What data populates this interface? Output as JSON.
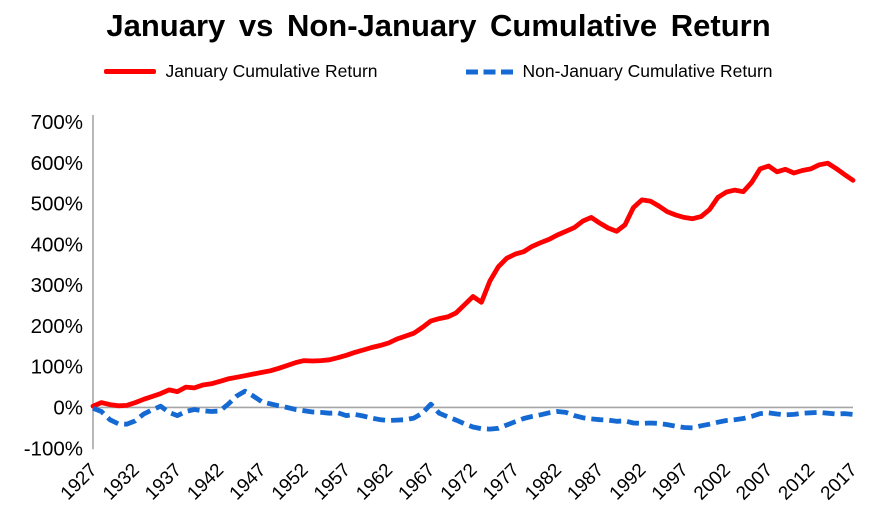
{
  "title": "January vs Non-January Cumulative Return",
  "legend": {
    "position": "top",
    "items": [
      {
        "label": "January Cumulative Return",
        "color": "#ff0000",
        "style": "solid"
      },
      {
        "label": "Non-January Cumulative Return",
        "color": "#1569d2",
        "style": "dashed"
      }
    ]
  },
  "chart_data": {
    "type": "line",
    "title": "January vs Non-January Cumulative Return",
    "xlabel": "",
    "ylabel": "",
    "grid": "zero-line-only",
    "axis_color": "#a6a6a6",
    "y_axis": {
      "min": -100,
      "max": 700,
      "step": 100,
      "tick_values": [
        700,
        600,
        500,
        400,
        300,
        200,
        100,
        0,
        -100
      ],
      "tick_labels": [
        "700%",
        "600%",
        "500%",
        "400%",
        "300%",
        "200%",
        "100%",
        "0%",
        "-100%"
      ]
    },
    "x_axis": {
      "min": 1927,
      "max": 2017,
      "tick_values": [
        1927,
        1932,
        1937,
        1942,
        1947,
        1952,
        1957,
        1962,
        1967,
        1972,
        1977,
        1982,
        1987,
        1992,
        1997,
        2002,
        2007,
        2012,
        2017
      ],
      "tick_labels": [
        "1927",
        "1932",
        "1937",
        "1942",
        "1947",
        "1952",
        "1957",
        "1962",
        "1967",
        "1972",
        "1977",
        "1982",
        "1987",
        "1992",
        "1997",
        "2002",
        "2007",
        "2012",
        "2017"
      ]
    },
    "years": [
      1927,
      1928,
      1929,
      1930,
      1931,
      1932,
      1933,
      1934,
      1935,
      1936,
      1937,
      1938,
      1939,
      1940,
      1941,
      1942,
      1943,
      1944,
      1945,
      1946,
      1947,
      1948,
      1949,
      1950,
      1951,
      1952,
      1953,
      1954,
      1955,
      1956,
      1957,
      1958,
      1959,
      1960,
      1961,
      1962,
      1963,
      1964,
      1965,
      1966,
      1967,
      1968,
      1969,
      1970,
      1971,
      1972,
      1973,
      1974,
      1975,
      1976,
      1977,
      1978,
      1979,
      1980,
      1981,
      1982,
      1983,
      1984,
      1985,
      1986,
      1987,
      1988,
      1989,
      1990,
      1991,
      1992,
      1993,
      1994,
      1995,
      1996,
      1997,
      1998,
      1999,
      2000,
      2001,
      2002,
      2003,
      2004,
      2005,
      2006,
      2007,
      2008,
      2009,
      2010,
      2011,
      2012,
      2013,
      2014,
      2015,
      2016,
      2017
    ],
    "series": [
      {
        "name": "January Cumulative Return",
        "color": "#ff0000",
        "style": "solid",
        "unit": "percent",
        "values": [
          3,
          12,
          7,
          4,
          5,
          12,
          20,
          27,
          34,
          43,
          39,
          50,
          48,
          55,
          58,
          64,
          70,
          74,
          78,
          82,
          86,
          90,
          96,
          103,
          110,
          115,
          114,
          115,
          117,
          122,
          128,
          135,
          141,
          147,
          152,
          158,
          168,
          175,
          182,
          196,
          212,
          218,
          222,
          232,
          252,
          272,
          258,
          310,
          345,
          366,
          376,
          382,
          395,
          404,
          412,
          423,
          432,
          441,
          457,
          466,
          452,
          440,
          432,
          448,
          490,
          509,
          506,
          494,
          480,
          472,
          466,
          463,
          468,
          485,
          515,
          528,
          533,
          529,
          552,
          585,
          592,
          578,
          584,
          575,
          581,
          585,
          595,
          599,
          586,
          571,
          557
        ]
      },
      {
        "name": "Non-January Cumulative Return",
        "color": "#1569d2",
        "style": "dashed",
        "unit": "percent",
        "values": [
          -2,
          -10,
          -30,
          -40,
          -41,
          -33,
          -16,
          -6,
          3,
          -12,
          -20,
          -10,
          -5,
          -8,
          -10,
          -9,
          8,
          28,
          40,
          28,
          14,
          9,
          4,
          0,
          -5,
          -8,
          -11,
          -12,
          -14,
          -13,
          -20,
          -17,
          -21,
          -26,
          -30,
          -32,
          -31,
          -30,
          -26,
          -14,
          8,
          -14,
          -23,
          -31,
          -40,
          -48,
          -52,
          -53,
          -51,
          -43,
          -35,
          -27,
          -22,
          -18,
          -13,
          -10,
          -12,
          -20,
          -25,
          -28,
          -30,
          -31,
          -34,
          -33,
          -38,
          -39,
          -38,
          -39,
          -42,
          -46,
          -49,
          -50,
          -45,
          -41,
          -36,
          -32,
          -30,
          -27,
          -22,
          -15,
          -13,
          -16,
          -18,
          -17,
          -14,
          -13,
          -12,
          -14,
          -16,
          -15,
          -17
        ]
      }
    ]
  }
}
